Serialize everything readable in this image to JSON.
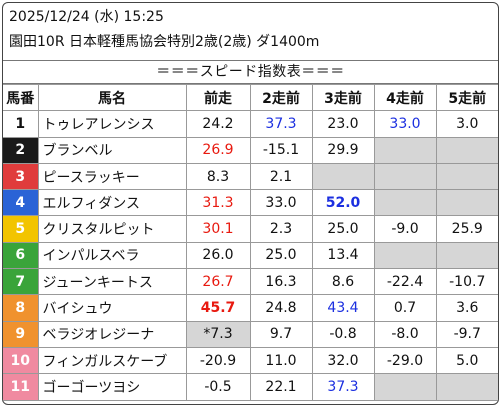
{
  "header": {
    "datetime": "2025/12/24 (水) 15:25",
    "race": "園田10R 日本軽種馬協会特別2歳(2歳) ダ1400m"
  },
  "banner": "＝＝＝スピード指数表＝＝＝",
  "columns": [
    "馬番",
    "馬名",
    "前走",
    "2走前",
    "3走前",
    "4走前",
    "5走前"
  ],
  "colors": {
    "red_value": "#e8190f",
    "blue_value": "#1b2fe0",
    "empty_cell": "#d6d6d6",
    "gate_1": "#ffffff",
    "gate_2": "#1a1a1a",
    "gate_3": "#e03c3c",
    "gate_4": "#2a63d6",
    "gate_5": "#f2c400",
    "gate_6": "#3aa43a",
    "gate_7": "#3aa43a",
    "gate_8": "#f0922e",
    "gate_9": "#f0922e",
    "gate_10": "#f08aa0",
    "gate_11": "#f08aa0"
  },
  "rows": [
    {
      "num": "1",
      "bg": "#ffffff",
      "fg": "#111111",
      "name": "トゥレアレンシス",
      "cells": [
        {
          "v": "24.2"
        },
        {
          "v": "37.3",
          "c": "blue"
        },
        {
          "v": "23.0"
        },
        {
          "v": "33.0",
          "c": "blue"
        },
        {
          "v": "3.0"
        }
      ]
    },
    {
      "num": "2",
      "bg": "#1a1a1a",
      "fg": "#ffffff",
      "name": "ブランベル",
      "cells": [
        {
          "v": "26.9",
          "c": "red"
        },
        {
          "v": "-15.1"
        },
        {
          "v": "29.9"
        },
        {
          "v": "",
          "gray": true
        },
        {
          "v": "",
          "gray": true
        }
      ]
    },
    {
      "num": "3",
      "bg": "#e03c3c",
      "fg": "#ffffff",
      "name": "ピースラッキー",
      "cells": [
        {
          "v": "8.3"
        },
        {
          "v": "2.1"
        },
        {
          "v": "",
          "gray": true
        },
        {
          "v": "",
          "gray": true
        },
        {
          "v": "",
          "gray": true
        }
      ]
    },
    {
      "num": "4",
      "bg": "#2a63d6",
      "fg": "#ffffff",
      "name": "エルフィダンス",
      "cells": [
        {
          "v": "31.3",
          "c": "red"
        },
        {
          "v": "33.0"
        },
        {
          "v": "52.0",
          "c": "blue",
          "b": true
        },
        {
          "v": "",
          "gray": true
        },
        {
          "v": "",
          "gray": true
        }
      ]
    },
    {
      "num": "5",
      "bg": "#f2c400",
      "fg": "#ffffff",
      "name": "クリスタルピット",
      "cells": [
        {
          "v": "30.1",
          "c": "red"
        },
        {
          "v": "2.3"
        },
        {
          "v": "25.0"
        },
        {
          "v": "-9.0"
        },
        {
          "v": "25.9"
        }
      ]
    },
    {
      "num": "6",
      "bg": "#3aa43a",
      "fg": "#ffffff",
      "name": "インパルスベラ",
      "cells": [
        {
          "v": "26.0"
        },
        {
          "v": "25.0"
        },
        {
          "v": "13.4"
        },
        {
          "v": "",
          "gray": true
        },
        {
          "v": "",
          "gray": true
        }
      ]
    },
    {
      "num": "7",
      "bg": "#3aa43a",
      "fg": "#ffffff",
      "name": "ジューンキートス",
      "cells": [
        {
          "v": "26.7",
          "c": "red"
        },
        {
          "v": "16.3"
        },
        {
          "v": "8.6"
        },
        {
          "v": "-22.4"
        },
        {
          "v": "-10.7"
        }
      ]
    },
    {
      "num": "8",
      "bg": "#f0922e",
      "fg": "#ffffff",
      "name": "バイシュウ",
      "cells": [
        {
          "v": "45.7",
          "c": "red",
          "b": true
        },
        {
          "v": "24.8"
        },
        {
          "v": "43.4",
          "c": "blue"
        },
        {
          "v": "0.7"
        },
        {
          "v": "3.6"
        }
      ]
    },
    {
      "num": "9",
      "bg": "#f0922e",
      "fg": "#ffffff",
      "name": "ベラジオレジーナ",
      "cells": [
        {
          "v": "*7.3",
          "gray": true
        },
        {
          "v": "9.7"
        },
        {
          "v": "-0.8"
        },
        {
          "v": "-8.0"
        },
        {
          "v": "-9.7"
        }
      ]
    },
    {
      "num": "10",
      "bg": "#f08aa0",
      "fg": "#ffffff",
      "name": "フィンガルスケーブ",
      "cells": [
        {
          "v": "-20.9"
        },
        {
          "v": "11.0"
        },
        {
          "v": "32.0"
        },
        {
          "v": "-29.0"
        },
        {
          "v": "5.0"
        }
      ]
    },
    {
      "num": "11",
      "bg": "#f08aa0",
      "fg": "#ffffff",
      "name": "ゴーゴーツヨシ",
      "cells": [
        {
          "v": "-0.5"
        },
        {
          "v": "22.1"
        },
        {
          "v": "37.3",
          "c": "blue"
        },
        {
          "v": "",
          "gray": true
        },
        {
          "v": "",
          "gray": true
        }
      ]
    }
  ]
}
